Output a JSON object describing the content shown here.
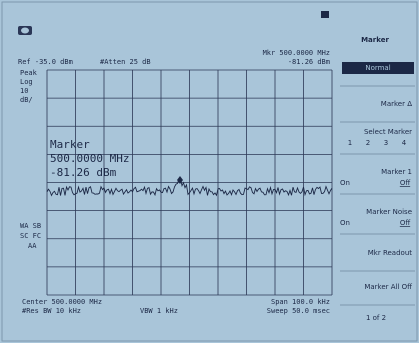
{
  "header": {
    "ref": "Ref -35.0 dBm",
    "atten": "#Atten 25 dB",
    "marker_freq": "Mkr 500.0000 MHz",
    "marker_level": "-81.26 dBm"
  },
  "scale": {
    "mode": "Peak",
    "type": "Log",
    "value": "10",
    "unit": "dB/"
  },
  "marker_box": {
    "title": "Marker",
    "freq": "500.0000 MHz",
    "level": "-81.26 dBm"
  },
  "status": [
    "WA SB",
    "SC FC",
    "AA"
  ],
  "footer": {
    "center": "Center 500.0000 MHz",
    "res_bw": "#Res BW 10 kHz",
    "vbw": "VBW 1 kHz",
    "span": "Span 100.0 kHz",
    "sweep": "Sweep 50.0 msec"
  },
  "softkeys": {
    "title": "Marker",
    "keys": [
      {
        "label": "Normal"
      },
      {
        "label": "Marker Δ"
      },
      {
        "label": "Select Marker",
        "options": [
          "1",
          "2",
          "3",
          "4"
        ]
      },
      {
        "label": "Marker 1",
        "options": [
          "On",
          "Off"
        ]
      },
      {
        "label": "Marker Noise",
        "options": [
          "On",
          "Off"
        ]
      },
      {
        "label": "Mkr Readout"
      },
      {
        "label": "Marker All Off"
      }
    ],
    "page": "1 of 2"
  }
}
